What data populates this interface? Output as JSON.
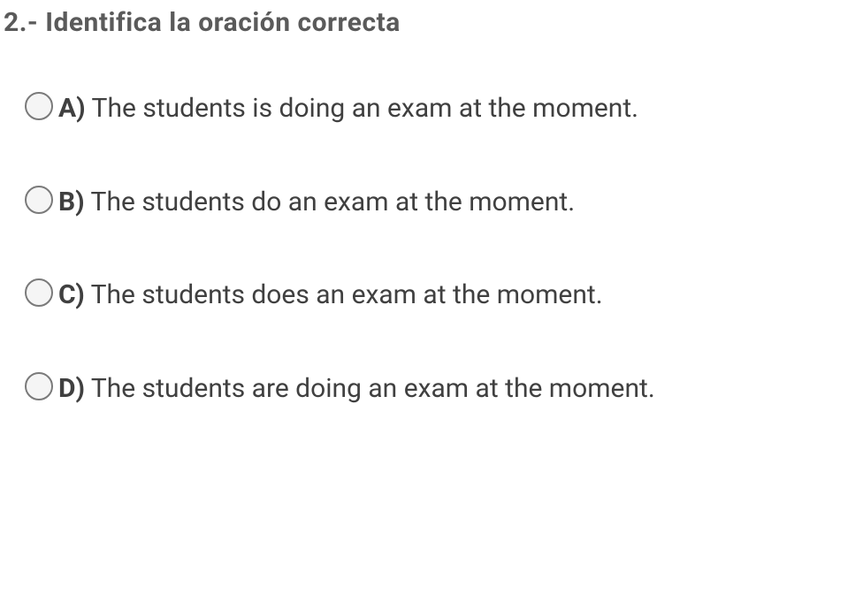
{
  "question": {
    "title": "2.- Identifica la oración correcta",
    "title_fontsize": 30,
    "title_color": "#5a5a5a",
    "option_fontsize": 30,
    "option_text_color": "#404040",
    "radio_border_color": "#7a7a7a",
    "radio_fill_color": "#f5f5f5",
    "background_color": "#ffffff",
    "options": [
      {
        "letter": "A)",
        "text": " The students is doing an exam at the moment."
      },
      {
        "letter": "B)",
        "text": " The students do an exam at the moment."
      },
      {
        "letter": "C)",
        "text": " The students does an exam at the moment."
      },
      {
        "letter": "D)",
        "text": " The students are doing an exam at the moment."
      }
    ]
  }
}
